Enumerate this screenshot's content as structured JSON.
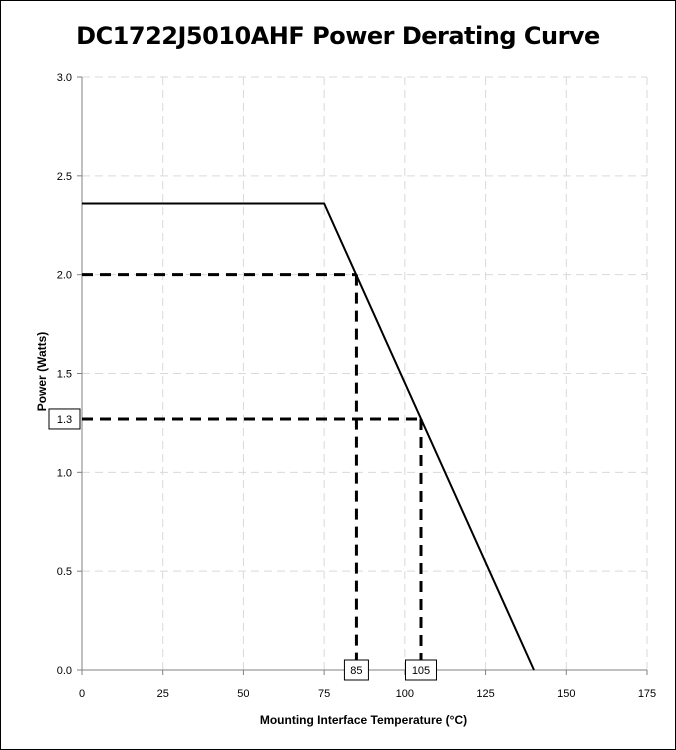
{
  "chart_data": {
    "type": "line",
    "title": "DC1722J5010AHF Power Derating Curve",
    "xlabel": "Mounting Interface Temperature (°C)",
    "ylabel": "Power (Watts)",
    "xlim": [
      0,
      175
    ],
    "ylim": [
      0,
      3.0
    ],
    "x_ticks": [
      0,
      25,
      50,
      75,
      100,
      125,
      150,
      175
    ],
    "y_ticks": [
      0.0,
      0.5,
      1.0,
      1.5,
      2.0,
      2.5,
      3.0
    ],
    "x_tick_labels": [
      "0",
      "25",
      "50",
      "75",
      "100",
      "125",
      "150",
      "175"
    ],
    "y_tick_labels": [
      "0.0",
      "0.5",
      "1.0",
      "1.5",
      "2.0",
      "2.5",
      "3.0"
    ],
    "grid": true,
    "series": [
      {
        "style": "solid",
        "x": [
          0,
          75,
          140
        ],
        "y": [
          2.36,
          2.36,
          0.0
        ]
      }
    ],
    "reference_lines": [
      {
        "style": "dashed",
        "x": [
          0,
          85
        ],
        "y": [
          2.0,
          2.0
        ]
      },
      {
        "style": "dashed",
        "x": [
          85,
          85
        ],
        "y": [
          2.0,
          0.0
        ]
      },
      {
        "style": "dashed",
        "x": [
          0,
          105
        ],
        "y": [
          1.27,
          1.27
        ]
      },
      {
        "style": "dashed",
        "x": [
          105,
          105
        ],
        "y": [
          1.27,
          0.0
        ]
      }
    ],
    "annotations": [
      {
        "text": "1.3",
        "axis": "y",
        "value": 1.27
      },
      {
        "text": "85",
        "axis": "x",
        "value": 85
      },
      {
        "text": "105",
        "axis": "x",
        "value": 105
      }
    ],
    "colors": {
      "line": "#000000",
      "grid": "#d9d9d9",
      "axis": "#808080"
    }
  }
}
